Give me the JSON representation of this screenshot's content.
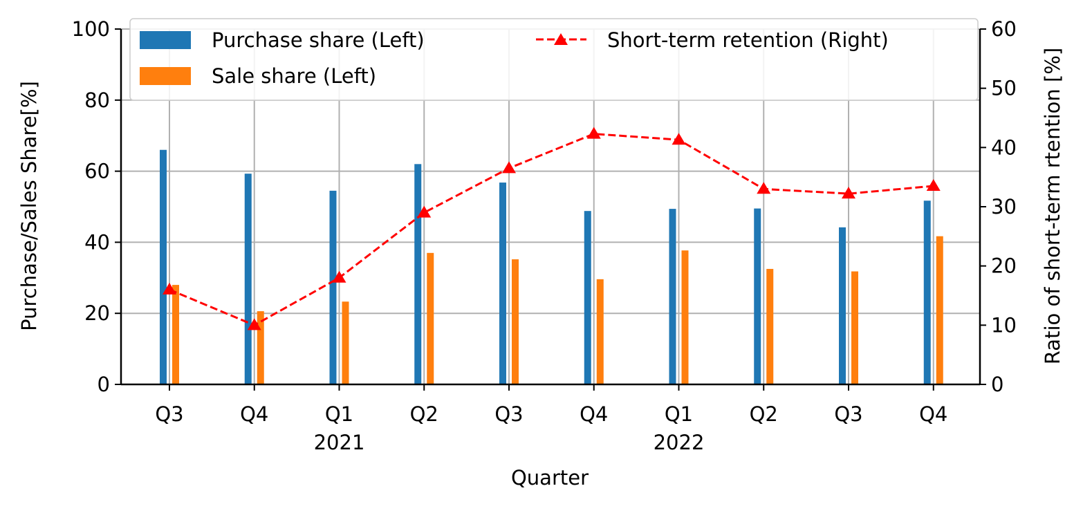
{
  "chart_data": {
    "type": "bar",
    "title": "",
    "xlabel": "Quarter",
    "ylabel_left": "Purchase/Sales Share[%]",
    "ylabel_right": "Ratio of short-term rtention [%]",
    "categories": [
      "Q3",
      "Q4",
      "Q1",
      "Q2",
      "Q3",
      "Q4",
      "Q1",
      "Q2",
      "Q3",
      "Q4"
    ],
    "year_labels": [
      {
        "index": 2,
        "label": "2021"
      },
      {
        "index": 6,
        "label": "2022"
      }
    ],
    "ylim_left": [
      0,
      100
    ],
    "ylim_right": [
      0,
      60
    ],
    "yticks_left": [
      0,
      20,
      40,
      60,
      80,
      100
    ],
    "yticks_right": [
      0,
      10,
      20,
      30,
      40,
      50,
      60
    ],
    "grid": true,
    "legend_position": "top",
    "series": [
      {
        "name": "Purchase share (Left)",
        "kind": "bar",
        "axis": "left",
        "color": "#1f77b4",
        "values": [
          66,
          59.3,
          54.5,
          62,
          56.8,
          48.8,
          49.4,
          49.5,
          44.2,
          51.7
        ]
      },
      {
        "name": "Sale share (Left)",
        "kind": "bar",
        "axis": "left",
        "color": "#ff7f0e",
        "values": [
          28,
          20.6,
          23.3,
          37,
          35.2,
          29.6,
          37.7,
          32.5,
          31.8,
          41.7
        ]
      },
      {
        "name": "Short-term retention (Right)",
        "kind": "line",
        "axis": "right",
        "color": "#ff0000",
        "line_style": "dashed",
        "marker": "triangle",
        "values": [
          16,
          10,
          18,
          29,
          36.5,
          42.3,
          41.3,
          33,
          32.2,
          33.5
        ]
      }
    ]
  }
}
